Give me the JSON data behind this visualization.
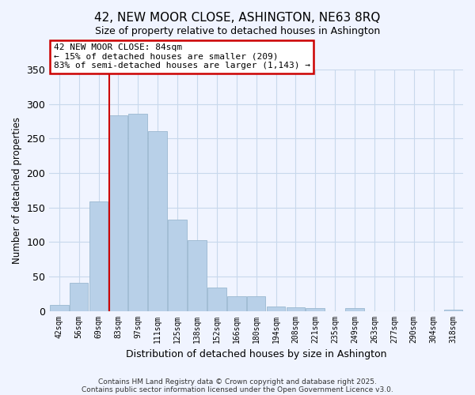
{
  "title": "42, NEW MOOR CLOSE, ASHINGTON, NE63 8RQ",
  "subtitle": "Size of property relative to detached houses in Ashington",
  "xlabel": "Distribution of detached houses by size in Ashington",
  "ylabel": "Number of detached properties",
  "bar_labels": [
    "42sqm",
    "56sqm",
    "69sqm",
    "83sqm",
    "97sqm",
    "111sqm",
    "125sqm",
    "138sqm",
    "152sqm",
    "166sqm",
    "180sqm",
    "194sqm",
    "208sqm",
    "221sqm",
    "235sqm",
    "249sqm",
    "263sqm",
    "277sqm",
    "290sqm",
    "304sqm",
    "318sqm"
  ],
  "bar_values": [
    9,
    41,
    159,
    284,
    286,
    261,
    133,
    103,
    34,
    21,
    21,
    6,
    5,
    4,
    0,
    4,
    0,
    0,
    0,
    0,
    2
  ],
  "bar_color": "#b8d0e8",
  "bar_edge_color": "#9ab8d0",
  "property_line_index": 3,
  "property_line_color": "#cc0000",
  "ylim": [
    0,
    350
  ],
  "yticks": [
    0,
    50,
    100,
    150,
    200,
    250,
    300,
    350
  ],
  "annotation_title": "42 NEW MOOR CLOSE: 84sqm",
  "annotation_line1": "← 15% of detached houses are smaller (209)",
  "annotation_line2": "83% of semi-detached houses are larger (1,143) →",
  "footer1": "Contains HM Land Registry data © Crown copyright and database right 2025.",
  "footer2": "Contains public sector information licensed under the Open Government Licence v3.0.",
  "bg_color": "#f0f4ff",
  "grid_color": "#c8d8ec"
}
